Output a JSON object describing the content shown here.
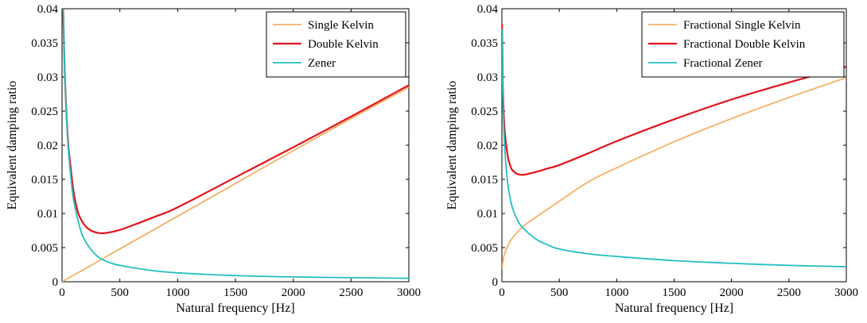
{
  "colors": {
    "single": "#f5b066",
    "double": "#e2141b",
    "zener": "#22bfc2",
    "axis": "#000000"
  },
  "chart_data": [
    {
      "type": "line",
      "xlabel": "Natural frequency [Hz]",
      "ylabel": "Equivalent damping ratio",
      "xlim": [
        0,
        3000
      ],
      "ylim": [
        0,
        0.04
      ],
      "xticks": [
        0,
        500,
        1000,
        1500,
        2000,
        2500,
        3000
      ],
      "xtick_labels": [
        "0",
        "500",
        "1000",
        "1500",
        "2000",
        "2500",
        "3000"
      ],
      "yticks": [
        0,
        0.005,
        0.01,
        0.015,
        0.02,
        0.025,
        0.03,
        0.035,
        0.04
      ],
      "ytick_labels": [
        "0",
        "0.005",
        "0.01",
        "0.015",
        "0.02",
        "0.025",
        "0.03",
        "0.035",
        "0.04"
      ],
      "grid": false,
      "legend_position": "top-right",
      "series": [
        {
          "name": "Single Kelvin",
          "color_key": "single",
          "x": [
            0,
            500,
            1000,
            1500,
            2000,
            2500,
            3000
          ],
          "y": [
            0.0,
            0.0048,
            0.0096,
            0.0144,
            0.0192,
            0.0239,
            0.0285
          ]
        },
        {
          "name": "Double Kelvin",
          "color_key": "double",
          "x": [
            10,
            25,
            50,
            75,
            100,
            125,
            150,
            200,
            250,
            300,
            350,
            400,
            500,
            600,
            800,
            1000,
            1500,
            2000,
            2500,
            3000
          ],
          "y": [
            0.04,
            0.03,
            0.021,
            0.0167,
            0.0132,
            0.011,
            0.0096,
            0.0082,
            0.0075,
            0.0072,
            0.0071,
            0.0072,
            0.0076,
            0.0082,
            0.0095,
            0.0109,
            0.0153,
            0.0197,
            0.0242,
            0.0288
          ]
        },
        {
          "name": "Zener",
          "color_key": "zener",
          "x": [
            5,
            10,
            25,
            50,
            75,
            100,
            150,
            200,
            300,
            400,
            500,
            750,
            1000,
            1500,
            2000,
            2500,
            3000
          ],
          "y": [
            0.04,
            0.04,
            0.03,
            0.0205,
            0.0155,
            0.012,
            0.0082,
            0.006,
            0.0038,
            0.0029,
            0.0024,
            0.0017,
            0.0013,
            0.0009,
            0.0007,
            0.0006,
            0.0005
          ]
        }
      ]
    },
    {
      "type": "line",
      "xlabel": "Natural frequency [Hz]",
      "ylabel": "Equivalent damping ratio",
      "xlim": [
        0,
        3000
      ],
      "ylim": [
        0,
        0.04
      ],
      "xticks": [
        0,
        500,
        1000,
        1500,
        2000,
        2500,
        3000
      ],
      "xtick_labels": [
        "0",
        "500",
        "1000",
        "1500",
        "2000",
        "2500",
        "3000"
      ],
      "yticks": [
        0,
        0.005,
        0.01,
        0.015,
        0.02,
        0.025,
        0.03,
        0.035,
        0.04
      ],
      "ytick_labels": [
        "0",
        "0.005",
        "0.01",
        "0.015",
        "0.02",
        "0.025",
        "0.03",
        "0.035",
        "0.04"
      ],
      "grid": false,
      "legend_position": "top-right",
      "series": [
        {
          "name": "Fractional Single Kelvin",
          "color_key": "single",
          "x": [
            1,
            10,
            25,
            50,
            100,
            200,
            300,
            500,
            750,
            1000,
            1500,
            2000,
            2500,
            3000
          ],
          "y": [
            0.0018,
            0.0032,
            0.0042,
            0.0052,
            0.0066,
            0.0083,
            0.0095,
            0.0118,
            0.0146,
            0.0167,
            0.0205,
            0.0239,
            0.027,
            0.0299
          ]
        },
        {
          "name": "Fractional Double Kelvin",
          "color_key": "double",
          "x": [
            1,
            5,
            10,
            25,
            50,
            75,
            100,
            150,
            200,
            250,
            300,
            400,
            500,
            750,
            1000,
            1500,
            2000,
            2500,
            3000
          ],
          "y": [
            0.0378,
            0.033,
            0.0275,
            0.022,
            0.0185,
            0.0169,
            0.0162,
            0.0157,
            0.0157,
            0.0159,
            0.0161,
            0.0166,
            0.0171,
            0.0188,
            0.0206,
            0.0238,
            0.0267,
            0.0292,
            0.0315
          ]
        },
        {
          "name": "Fractional Zener",
          "color_key": "zener",
          "x": [
            1,
            5,
            10,
            25,
            50,
            75,
            100,
            150,
            200,
            300,
            400,
            500,
            750,
            1000,
            1500,
            2000,
            2500,
            3000
          ],
          "y": [
            0.037,
            0.031,
            0.026,
            0.0195,
            0.0145,
            0.012,
            0.0104,
            0.0086,
            0.0076,
            0.0062,
            0.0054,
            0.0048,
            0.0041,
            0.0037,
            0.0031,
            0.0027,
            0.0024,
            0.0022
          ]
        }
      ]
    }
  ]
}
